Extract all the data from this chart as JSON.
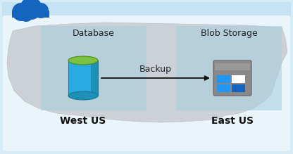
{
  "bg_outer": "#d6edf8",
  "bg_inner": "#eaf5fb",
  "map_color": "#c8cdd2",
  "map_edge": "#b8bec4",
  "region_color": "#a8cfe0",
  "region_alpha": 0.6,
  "cloud_color": "#1565c0",
  "db_top_color": "#7dc143",
  "db_body_color": "#29abe2",
  "db_body_dark": "#1e8fb5",
  "db_edge_color": "#1878a0",
  "blob_frame_color": "#888888",
  "blob_frame_dark": "#707070",
  "blob_blue": "#2196f3",
  "blob_blue_dark": "#1565c0",
  "blob_white": "#ffffff",
  "arrow_color": "#111111",
  "text_color": "#222222",
  "text_bold_color": "#111111",
  "outer_border": "#7ab8d9",
  "header_bar": "#c5e3f2",
  "text_database": "Database",
  "text_blob": "Blob Storage",
  "text_backup": "Backup",
  "text_west": "West US",
  "text_east": "East US",
  "figw": 4.16,
  "figh": 2.19,
  "dpi": 100
}
